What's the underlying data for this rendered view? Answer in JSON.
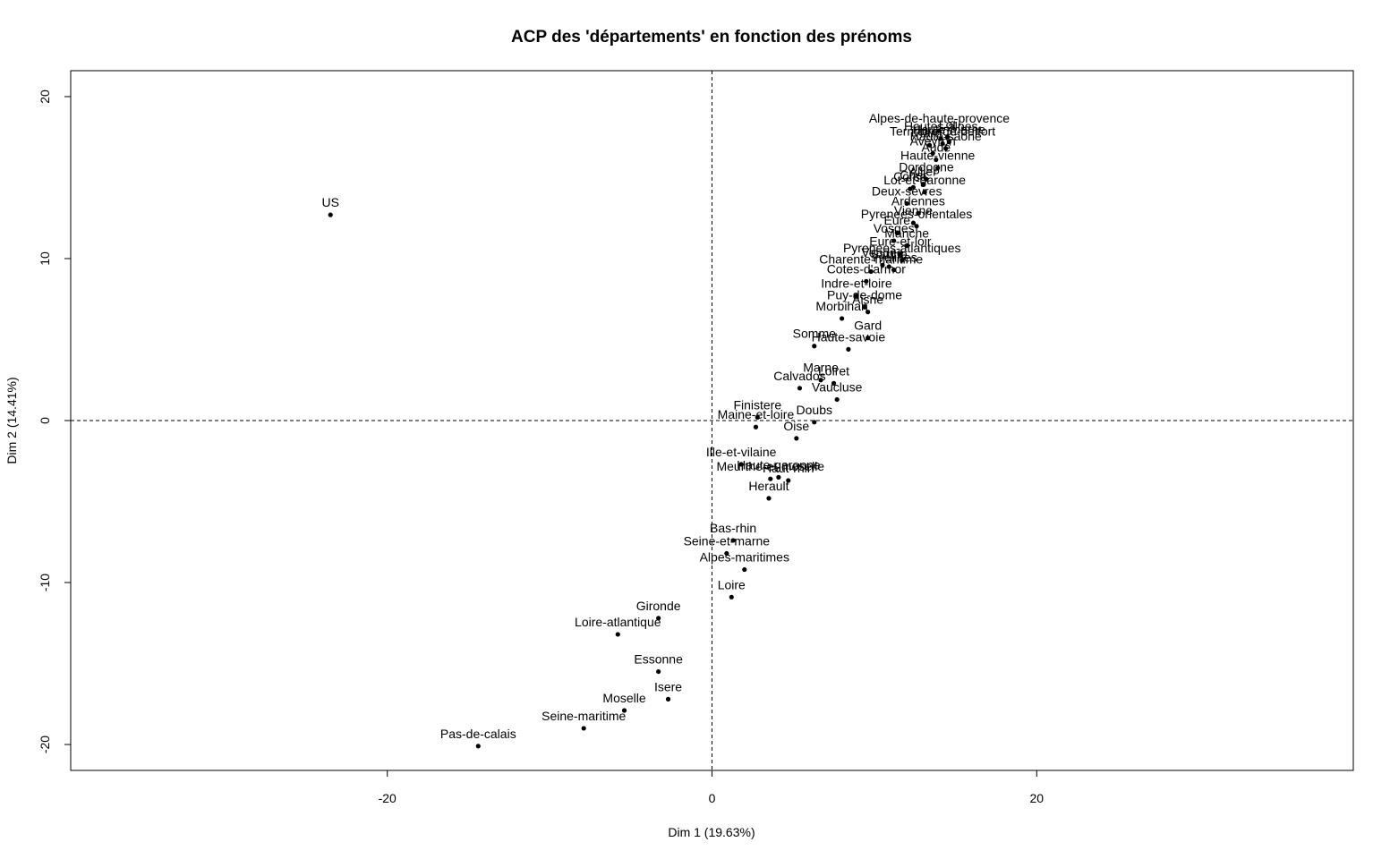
{
  "chart_data": {
    "type": "scatter",
    "title": "ACP des 'départements' en fonction des prénoms",
    "xlabel": "Dim 1 (19.63%)",
    "ylabel": "Dim 2 (14.41%)",
    "xlim": [
      -39.5,
      39.5
    ],
    "ylim": [
      -21.6,
      21.6
    ],
    "xticks": [
      -20,
      0,
      20
    ],
    "yticks": [
      -20,
      -10,
      0,
      10,
      20
    ],
    "grid": false,
    "reference_lines": {
      "x": 0,
      "y": 0,
      "style": "dashed"
    },
    "points": [
      {
        "label": "US",
        "x": -23.5,
        "y": 12.7
      },
      {
        "label": "Pas-de-calais",
        "x": -14.4,
        "y": -20.1
      },
      {
        "label": "Seine-maritime",
        "x": -7.9,
        "y": -19.0
      },
      {
        "label": "Moselle",
        "x": -5.4,
        "y": -17.9
      },
      {
        "label": "Isere",
        "x": -2.7,
        "y": -17.2
      },
      {
        "label": "Essonne",
        "x": -3.3,
        "y": -15.5
      },
      {
        "label": "Loire-atlantique",
        "x": -5.8,
        "y": -13.2
      },
      {
        "label": "Gironde",
        "x": -3.3,
        "y": -12.2
      },
      {
        "label": "Loire",
        "x": 1.2,
        "y": -10.9
      },
      {
        "label": "Alpes-maritimes",
        "x": 2.0,
        "y": -9.2
      },
      {
        "label": "Seine-et-marne",
        "x": 0.9,
        "y": -8.2
      },
      {
        "label": "Bas-rhin",
        "x": 1.3,
        "y": -7.4
      },
      {
        "label": "Herault",
        "x": 3.5,
        "y": -4.8
      },
      {
        "label": "Meurthe-et-moselle",
        "x": 3.6,
        "y": -3.6
      },
      {
        "label": "Haut-rhin",
        "x": 4.7,
        "y": -3.7
      },
      {
        "label": "Haute-garonne",
        "x": 4.1,
        "y": -3.5
      },
      {
        "label": "Ille-et-vilaine",
        "x": 1.8,
        "y": -2.7
      },
      {
        "label": "Oise",
        "x": 5.2,
        "y": -1.1
      },
      {
        "label": "Doubs",
        "x": 6.3,
        "y": -0.1
      },
      {
        "label": "Maine-et-loire",
        "x": 2.7,
        "y": -0.4
      },
      {
        "label": "Finistere",
        "x": 2.8,
        "y": 0.2
      },
      {
        "label": "Vaucluse",
        "x": 7.7,
        "y": 1.3
      },
      {
        "label": "Calvados",
        "x": 5.4,
        "y": 2.0
      },
      {
        "label": "Marne",
        "x": 6.7,
        "y": 2.5
      },
      {
        "label": "Loiret",
        "x": 7.5,
        "y": 2.3
      },
      {
        "label": "Somme",
        "x": 6.3,
        "y": 4.6
      },
      {
        "label": "Haute-savoie",
        "x": 8.4,
        "y": 4.4
      },
      {
        "label": "Morbihan",
        "x": 8.0,
        "y": 6.3
      },
      {
        "label": "Gard",
        "x": 9.6,
        "y": 5.1
      },
      {
        "label": "Aisne",
        "x": 9.6,
        "y": 6.7
      },
      {
        "label": "Puy-de-dome",
        "x": 9.4,
        "y": 7.0
      },
      {
        "label": "Indre-et-loire",
        "x": 8.9,
        "y": 7.7
      },
      {
        "label": "Cotes-d'armor",
        "x": 9.5,
        "y": 8.6
      },
      {
        "label": "Charente-maritime",
        "x": 9.8,
        "y": 9.2
      },
      {
        "label": "Vendee",
        "x": 10.5,
        "y": 9.6
      },
      {
        "label": "Sarthe",
        "x": 10.9,
        "y": 9.5
      },
      {
        "label": "Yvelines",
        "x": 11.2,
        "y": 9.3
      },
      {
        "label": "Pyrenees-atlantiques",
        "x": 11.7,
        "y": 9.9
      },
      {
        "label": "Eure-et-loir",
        "x": 11.6,
        "y": 10.3
      },
      {
        "label": "Manche",
        "x": 12.0,
        "y": 10.8
      },
      {
        "label": "Vosges",
        "x": 11.2,
        "y": 11.1
      },
      {
        "label": "Eure",
        "x": 11.4,
        "y": 11.6
      },
      {
        "label": "Vienne",
        "x": 12.4,
        "y": 12.2
      },
      {
        "label": "Pyrenees-orientales",
        "x": 12.6,
        "y": 12.0
      },
      {
        "label": "Ardennes",
        "x": 12.7,
        "y": 12.8
      },
      {
        "label": "Deux-sevres",
        "x": 12.0,
        "y": 13.4
      },
      {
        "label": "Lot-et-garonne",
        "x": 13.1,
        "y": 14.1
      },
      {
        "label": "Cher",
        "x": 12.4,
        "y": 14.4
      },
      {
        "label": "Corse",
        "x": 12.2,
        "y": 14.3
      },
      {
        "label": "Dordogne",
        "x": 13.2,
        "y": 14.9
      },
      {
        "label": "Allier",
        "x": 13.0,
        "y": 14.6
      },
      {
        "label": "Haute-vienne",
        "x": 13.9,
        "y": 15.6
      },
      {
        "label": "Aude",
        "x": 13.8,
        "y": 16.1
      },
      {
        "label": "Aveyron",
        "x": 13.6,
        "y": 16.5
      },
      {
        "label": "Haute-saone",
        "x": 14.4,
        "y": 16.8
      },
      {
        "label": "Haute-marne",
        "x": 14.6,
        "y": 17.2
      },
      {
        "label": "Tarn",
        "x": 13.4,
        "y": 17.0
      },
      {
        "label": "Territoire-de-belfort",
        "x": 14.2,
        "y": 17.1
      },
      {
        "label": "Hautes-alpes",
        "x": 14.1,
        "y": 17.4
      },
      {
        "label": "Lot",
        "x": 14.5,
        "y": 17.5
      },
      {
        "label": "Alpes-de-haute-provence",
        "x": 14.0,
        "y": 17.9
      }
    ]
  }
}
